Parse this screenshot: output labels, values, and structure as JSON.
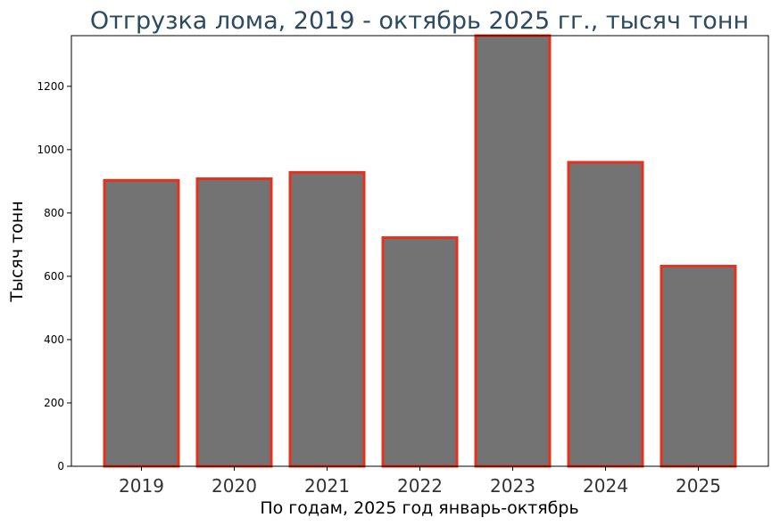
{
  "chart_data": {
    "type": "bar",
    "title": "Отгрузка лома, 2019 - октябрь 2025 гг., тысяч тонн",
    "xlabel": "По годам, 2025 год январь-октябрь",
    "ylabel": "Тысяч тонн",
    "categories": [
      "2019",
      "2020",
      "2021",
      "2022",
      "2023",
      "2024",
      "2025"
    ],
    "values": [
      903,
      908,
      928,
      722,
      1360,
      960,
      632
    ],
    "ylim": [
      0,
      1360
    ],
    "yticks": [
      0,
      200,
      400,
      600,
      800,
      1000,
      1200
    ],
    "grid": false,
    "bar_fill": "#737373",
    "bar_edge": "#e8301a",
    "title_color": "#2b4a5f"
  }
}
